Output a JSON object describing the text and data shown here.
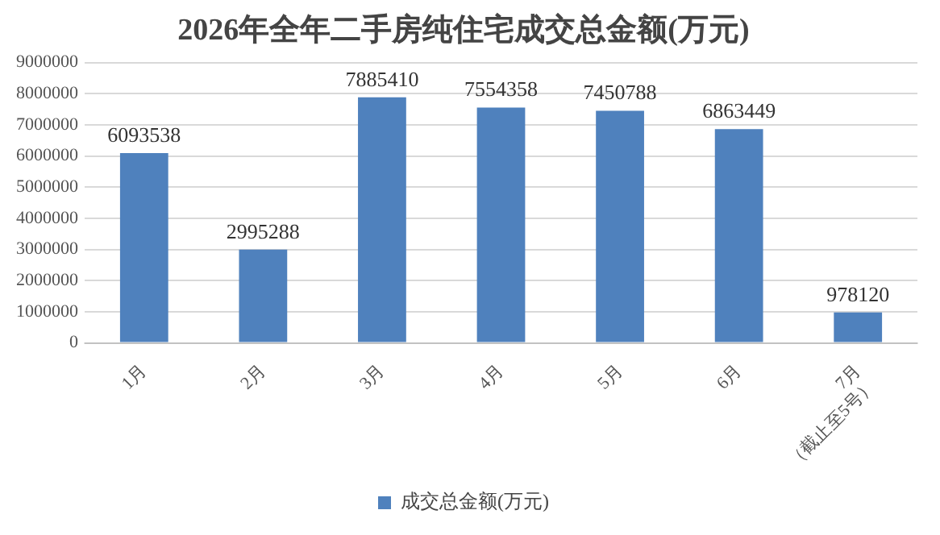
{
  "chart_data": {
    "type": "bar",
    "title": "2026年全年二手房纯住宅成交总金额(万元)",
    "categories": [
      "1月",
      "2月",
      "3月",
      "4月",
      "5月",
      "6月",
      "7月\n（截止至5号）"
    ],
    "series": [
      {
        "name": "成交总金额(万元)",
        "color": "#4f81bd",
        "values": [
          6093538,
          2995288,
          7885410,
          7554358,
          7450788,
          6863449,
          978120
        ]
      }
    ],
    "ylim": [
      0,
      9000000
    ],
    "yticks": [
      0,
      1000000,
      2000000,
      3000000,
      4000000,
      5000000,
      6000000,
      7000000,
      8000000,
      9000000
    ],
    "grid": "y",
    "legend": "bottom",
    "data_labels": true
  }
}
